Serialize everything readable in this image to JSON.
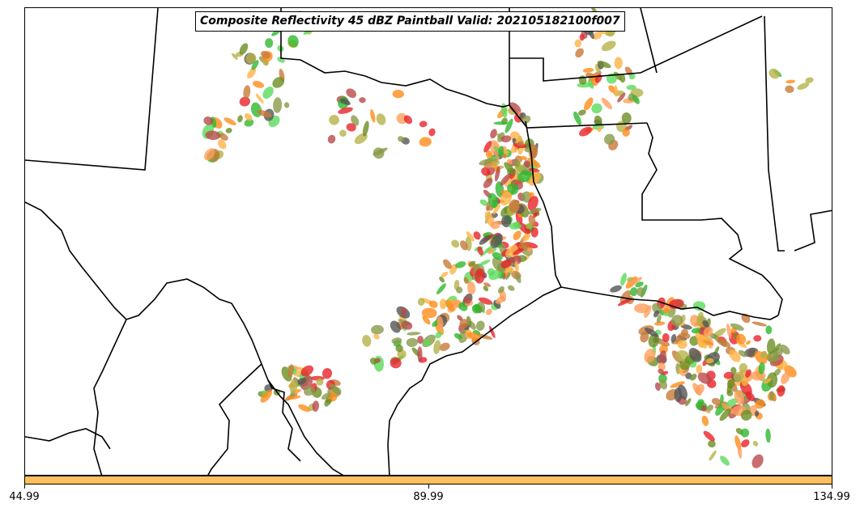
{
  "title": "Composite Reflectivity 45 dBZ Paintball Valid: 202105182100f007",
  "colorbar": {
    "color": "#FFC060",
    "ticks": [
      "44.99",
      "89.99",
      "134.99"
    ]
  },
  "palette": [
    "#E8232A",
    "#FF8C1A",
    "#FF9F5A",
    "#FFB347",
    "#5BDB5B",
    "#2EB82E",
    "#B5B34A",
    "#B94A4A",
    "#555555",
    "#8A9A4A",
    "#C77A3A",
    "#6B8E23"
  ]
}
